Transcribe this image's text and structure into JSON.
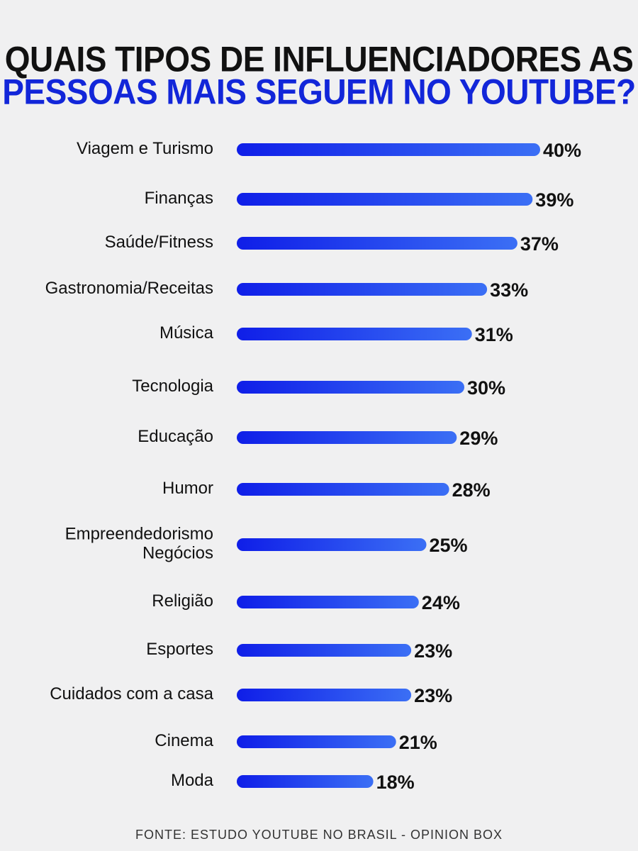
{
  "title": {
    "line1": "QUAIS TIPOS DE INFLUENCIADORES AS",
    "line2": "PESSOAS MAIS SEGUEM NO YOUTUBE?"
  },
  "source": "FONTE: ESTUDO YOUTUBE NO BRASIL - OPINION BOX",
  "colors": {
    "title_dark": "#111111",
    "title_accent": "#1226d9",
    "bar_start": "#0f1ee8",
    "bar_end": "#3b6ff5",
    "background": "#f0f0f1"
  },
  "chart_data": {
    "type": "bar",
    "orientation": "horizontal",
    "value_suffix": "%",
    "categories": [
      [
        "Viagem e Turismo"
      ],
      [
        "Finanças"
      ],
      [
        "Saúde/Fitness"
      ],
      [
        "Gastronomia/Receitas"
      ],
      [
        "Música"
      ],
      [
        "Tecnologia"
      ],
      [
        "Educação"
      ],
      [
        "Humor"
      ],
      [
        "Empreendedorismo",
        "Negócios"
      ],
      [
        "Religião"
      ],
      [
        "Esportes"
      ],
      [
        "Cuidados com a casa"
      ],
      [
        "Cinema"
      ],
      [
        "Moda"
      ]
    ],
    "values": [
      40,
      39,
      37,
      33,
      31,
      30,
      29,
      28,
      25,
      24,
      23,
      23,
      21,
      18
    ]
  }
}
